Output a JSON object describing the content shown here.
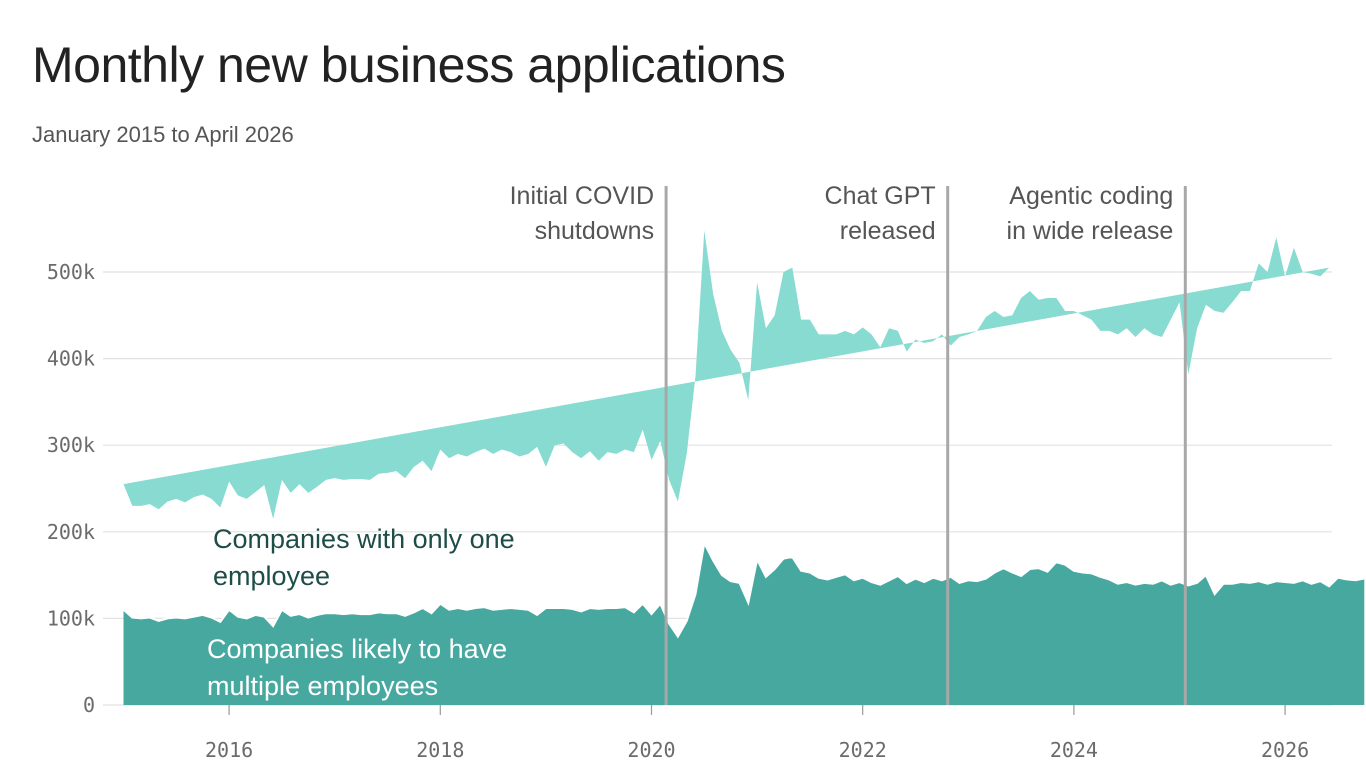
{
  "chart_data": {
    "type": "area",
    "stacked": true,
    "title": "Monthly new business applications",
    "subtitle": "January 2015 to April 2026",
    "x_start": "2015-01",
    "x_end": "2026-04",
    "ylim": [
      0,
      550000
    ],
    "grid": true,
    "y_ticks": [
      {
        "value": 0,
        "label": "0"
      },
      {
        "value": 100000,
        "label": "100k"
      },
      {
        "value": 200000,
        "label": "200k"
      },
      {
        "value": 300000,
        "label": "300k"
      },
      {
        "value": 400000,
        "label": "400k"
      },
      {
        "value": 500000,
        "label": "500k"
      }
    ],
    "x_ticks": [
      {
        "value": "2016-01",
        "label": "2016"
      },
      {
        "value": "2018-01",
        "label": "2018"
      },
      {
        "value": "2020-01",
        "label": "2020"
      },
      {
        "value": "2022-01",
        "label": "2022"
      },
      {
        "value": "2024-01",
        "label": "2024"
      },
      {
        "value": "2026-01",
        "label": "2026"
      }
    ],
    "annotations": [
      {
        "x": "2020-03",
        "lines": [
          "Initial COVID",
          "shutdowns"
        ]
      },
      {
        "x": "2022-11",
        "lines": [
          "Chat GPT",
          "released"
        ]
      },
      {
        "x": "2025-02",
        "lines": [
          "Agentic coding",
          "in wide release"
        ]
      }
    ],
    "series": [
      {
        "name": "Companies likely to have multiple employees",
        "label_lines": [
          "Companies likely to have",
          "multiple employees"
        ],
        "color": "#47a8a0",
        "values": [
          110000,
          101000,
          100000,
          101000,
          97000,
          100000,
          101000,
          100000,
          102000,
          104000,
          101000,
          96000,
          110000,
          102000,
          100000,
          104000,
          102000,
          91000,
          110000,
          103000,
          105000,
          101000,
          104000,
          106000,
          106000,
          105000,
          106000,
          105000,
          105000,
          107000,
          106000,
          106000,
          103000,
          107000,
          112000,
          106000,
          117000,
          110000,
          112000,
          110000,
          112000,
          113000,
          110000,
          111000,
          112000,
          111000,
          110000,
          104000,
          112000,
          112000,
          112000,
          111000,
          108000,
          112000,
          111000,
          112000,
          112000,
          113000,
          107000,
          117000,
          105000,
          117000,
          94000,
          79000,
          97000,
          128000,
          187000,
          167000,
          150000,
          143000,
          141000,
          118000,
          168000,
          148000,
          157000,
          169000,
          171000,
          155000,
          153000,
          147000,
          145000,
          148000,
          151000,
          144000,
          147000,
          142000,
          139000,
          144000,
          149000,
          141000,
          146000,
          142000,
          147000,
          144000,
          148000,
          141000,
          144000,
          143000,
          146000,
          153000,
          158000,
          153000,
          149000,
          157000,
          158000,
          154000,
          165000,
          162000,
          155000,
          153000,
          152000,
          148000,
          145000,
          140000,
          142000,
          139000,
          141000,
          140000,
          144000,
          139000,
          142000,
          138000,
          141000,
          150000,
          128000,
          140000,
          140000,
          142000,
          141000,
          143000,
          140000,
          143000,
          142000,
          141000,
          144000,
          140000,
          143000,
          137000,
          147000,
          145000,
          144000,
          146000
        ]
      },
      {
        "name": "Companies with only one employee",
        "label_lines": [
          "Companies with only one",
          "employee"
        ],
        "color": "#88dbd1",
        "totals": [
          255000,
          230000,
          230000,
          232000,
          226000,
          235000,
          238000,
          234000,
          240000,
          243000,
          238000,
          228000,
          258000,
          242000,
          238000,
          246000,
          254000,
          215000,
          260000,
          245000,
          255000,
          245000,
          252000,
          260000,
          262000,
          260000,
          261000,
          261000,
          260000,
          267000,
          268000,
          270000,
          262000,
          275000,
          282000,
          270000,
          295000,
          285000,
          290000,
          287000,
          292000,
          296000,
          290000,
          295000,
          292000,
          287000,
          290000,
          298000,
          275000,
          300000,
          302000,
          292000,
          285000,
          293000,
          282000,
          292000,
          290000,
          295000,
          292000,
          318000,
          283000,
          305000,
          260000,
          235000,
          290000,
          380000,
          548000,
          475000,
          432000,
          410000,
          395000,
          352000,
          488000,
          435000,
          450000,
          500000,
          505000,
          445000,
          445000,
          428000,
          428000,
          428000,
          432000,
          428000,
          436000,
          428000,
          413000,
          435000,
          432000,
          408000,
          422000,
          418000,
          420000,
          428000,
          415000,
          425000,
          428000,
          432000,
          448000,
          455000,
          448000,
          450000,
          470000,
          478000,
          468000,
          470000,
          470000,
          455000,
          455000,
          450000,
          445000,
          432000,
          432000,
          428000,
          435000,
          425000,
          435000,
          428000,
          425000,
          445000,
          465000,
          382000,
          435000,
          462000,
          455000,
          453000,
          465000,
          478000,
          478000,
          510000,
          500000,
          540000,
          495000,
          528000,
          500000,
          498000,
          495000,
          505000
        ]
      }
    ]
  }
}
